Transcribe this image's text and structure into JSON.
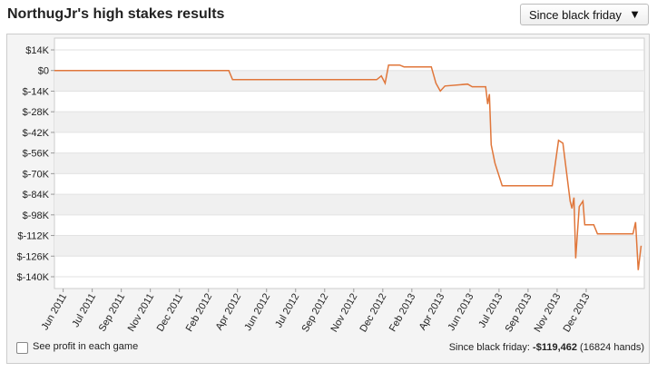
{
  "header": {
    "title": "NorthugJr's high stakes results",
    "dropdown": "Since black friday",
    "dropdown_arrow": "▼"
  },
  "footer": {
    "checkbox_label": "See profit in each game",
    "summary_label": "Since black friday:",
    "summary_value": "-$119,462",
    "summary_hands": "(16824 hands)"
  },
  "chart_data": {
    "type": "line",
    "xlim": [
      0.7,
      21
    ],
    "xticks": [
      {
        "value": 1,
        "label": "Jun 2011"
      },
      {
        "value": 2,
        "label": "Jul 2011"
      },
      {
        "value": 3,
        "label": "Sep 2011"
      },
      {
        "value": 4,
        "label": "Nov 2011"
      },
      {
        "value": 5,
        "label": "Dec 2011"
      },
      {
        "value": 6,
        "label": "Feb 2012"
      },
      {
        "value": 7,
        "label": "Apr 2012"
      },
      {
        "value": 8,
        "label": "Jun 2012"
      },
      {
        "value": 9,
        "label": "Jul 2012"
      },
      {
        "value": 10,
        "label": "Sep 2012"
      },
      {
        "value": 11,
        "label": "Nov 2012"
      },
      {
        "value": 12,
        "label": "Dec 2012"
      },
      {
        "value": 13,
        "label": "Feb 2013"
      },
      {
        "value": 14,
        "label": "Apr 2013"
      },
      {
        "value": 15,
        "label": "Jun 2013"
      },
      {
        "value": 16,
        "label": "Jul 2013"
      },
      {
        "value": 17,
        "label": "Sep 2013"
      },
      {
        "value": 18,
        "label": "Nov 2013"
      },
      {
        "value": 19,
        "label": "Dec 2013"
      }
    ],
    "ylim": [
      -148000,
      22000
    ],
    "yticks": [
      {
        "value": 14000,
        "label": "$14K"
      },
      {
        "value": 0,
        "label": "$0"
      },
      {
        "value": -14000,
        "label": "$-14K"
      },
      {
        "value": -28000,
        "label": "$-28K"
      },
      {
        "value": -42000,
        "label": "$-42K"
      },
      {
        "value": -56000,
        "label": "$-56K"
      },
      {
        "value": -70000,
        "label": "$-70K"
      },
      {
        "value": -84000,
        "label": "$-84K"
      },
      {
        "value": -98000,
        "label": "$-98K"
      },
      {
        "value": -112000,
        "label": "$-112K"
      },
      {
        "value": -126000,
        "label": "$-126K"
      },
      {
        "value": -140000,
        "label": "$-140K"
      }
    ],
    "grid": true,
    "x": [
      0.7,
      6.7,
      6.83,
      11.79,
      11.95,
      12.08,
      12.2,
      12.58,
      12.73,
      13.67,
      13.83,
      13.98,
      14.14,
      14.92,
      15.08,
      15.54,
      15.61,
      15.67,
      15.73,
      15.86,
      16.11,
      17.83,
      18.05,
      18.2,
      18.45,
      18.51,
      18.58,
      18.64,
      18.76,
      18.89,
      18.95,
      19.26,
      19.39,
      20.61,
      20.7,
      20.79,
      20.89
    ],
    "series": [
      {
        "color": "#e0763a",
        "values": [
          0,
          0,
          -6200,
          -6200,
          -3700,
          -8600,
          3700,
          3700,
          2500,
          2500,
          -8600,
          -14000,
          -10500,
          -9200,
          -11000,
          -11000,
          -22800,
          -16000,
          -50500,
          -62800,
          -78200,
          -78200,
          -47400,
          -49300,
          -88700,
          -93600,
          -86300,
          -127500,
          -92400,
          -88700,
          -104700,
          -104700,
          -110900,
          -110900,
          -102900,
          -135500,
          -118900
        ]
      }
    ]
  }
}
